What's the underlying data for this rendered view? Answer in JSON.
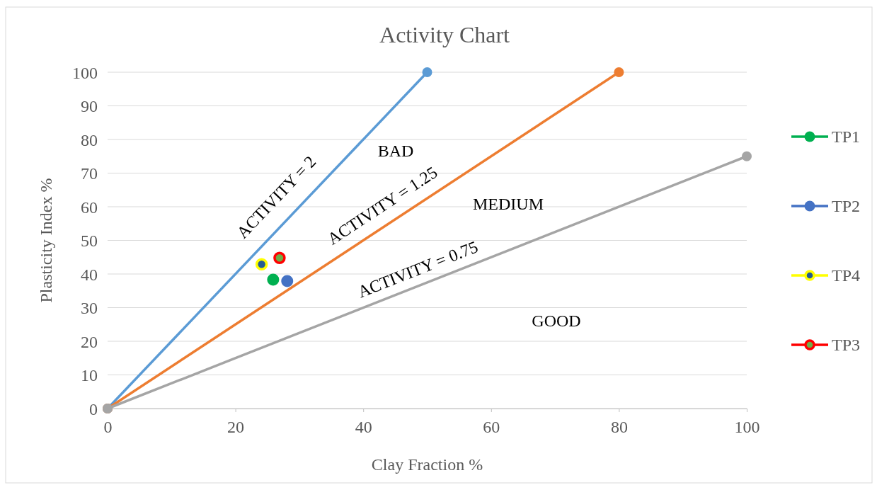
{
  "chart_data": {
    "type": "scatter",
    "title": "Activity Chart",
    "xlabel": "Clay Fraction %",
    "ylabel": "Plasticity Index %",
    "xlim": [
      0,
      100
    ],
    "xticks": [
      0,
      20,
      40,
      60,
      80,
      100
    ],
    "ylim": [
      0,
      100
    ],
    "yticks": [
      0,
      10,
      20,
      30,
      40,
      50,
      60,
      70,
      80,
      90,
      100
    ],
    "grid": "y",
    "legend": "right",
    "marker": "circle",
    "series": [
      {
        "type": "line",
        "color": "#5b9bd5",
        "x": [
          0,
          50
        ],
        "values": [
          0,
          100
        ]
      },
      {
        "type": "line",
        "color": "#ed7d31",
        "x": [
          0,
          80
        ],
        "values": [
          0,
          100
        ]
      },
      {
        "type": "line",
        "color": "#a5a5a5",
        "x": [
          0,
          100
        ],
        "values": [
          0,
          75
        ]
      },
      {
        "name": "TP1",
        "color": "#00b050",
        "x": [
          25.9
        ],
        "values": [
          38.3
        ]
      },
      {
        "name": "TP2",
        "color": "#4472c4",
        "x": [
          28.1
        ],
        "values": [
          37.9
        ]
      },
      {
        "name": "TP4",
        "color": "#ffff00",
        "x": [
          24.1
        ],
        "values": [
          42.9
        ]
      },
      {
        "name": "TP3",
        "color": "#ff0000",
        "x": [
          26.9
        ],
        "values": [
          44.8
        ]
      }
    ],
    "annotations": [
      "ACTIVITY = 2",
      "BAD",
      "ACTIVITY = 1.25",
      "MEDIUM",
      "ACTIVITY = 0.75",
      "GOOD"
    ]
  }
}
